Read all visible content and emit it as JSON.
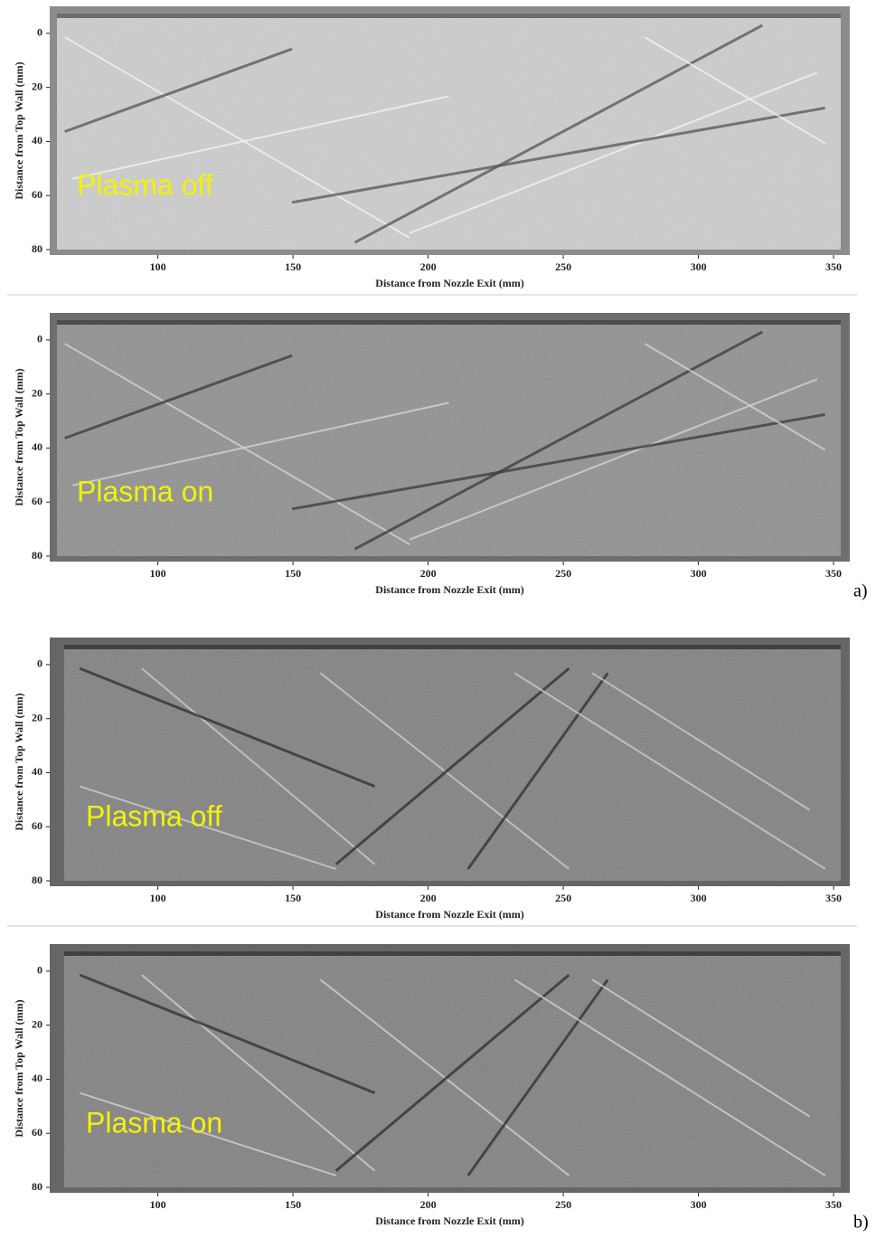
{
  "chart_data": [
    {
      "type": "image",
      "annotation": "Plasma off",
      "xlabel": "Distance from Nozzle Exit (mm)",
      "ylabel": "Distance from Top Wall (mm)",
      "xlim": [
        60,
        356
      ],
      "ylim": [
        -10,
        82
      ],
      "xticks": [
        100,
        150,
        200,
        250,
        300,
        350
      ],
      "yticks": [
        0,
        20,
        40,
        60,
        80
      ]
    },
    {
      "type": "image",
      "annotation": "Plasma on",
      "xlabel": "Distance from Nozzle Exit (mm)",
      "ylabel": "Distance from Top Wall (mm)",
      "xlim": [
        60,
        356
      ],
      "ylim": [
        -10,
        82
      ],
      "xticks": [
        100,
        150,
        200,
        250,
        300,
        350
      ],
      "yticks": [
        0,
        20,
        40,
        60,
        80
      ],
      "panel_label": "a)"
    },
    {
      "type": "image",
      "annotation": "Plasma off",
      "xlabel": "Distance from Nozzle Exit (mm)",
      "ylabel": "Distance from Top Wall (mm)",
      "xlim": [
        60,
        356
      ],
      "ylim": [
        -10,
        82
      ],
      "xticks": [
        100,
        150,
        200,
        250,
        300,
        350
      ],
      "yticks": [
        0,
        20,
        40,
        60,
        80
      ]
    },
    {
      "type": "image",
      "annotation": "Plasma on",
      "xlabel": "Distance from Nozzle Exit (mm)",
      "ylabel": "Distance from Top Wall (mm)",
      "xlim": [
        60,
        356
      ],
      "ylim": [
        -10,
        82
      ],
      "xticks": [
        100,
        150,
        200,
        250,
        300,
        350
      ],
      "yticks": [
        0,
        20,
        40,
        60,
        80
      ],
      "panel_label": "b)"
    }
  ]
}
